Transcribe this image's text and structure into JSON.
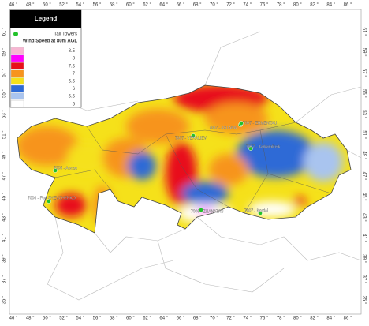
{
  "legend": {
    "title": "Legend",
    "towers_label": "Tall Towers",
    "subtitle": "Wind Speed at 80m AGL",
    "classes": [
      8.5,
      8,
      7.5,
      7,
      6.5,
      6,
      5.5,
      5
    ]
  },
  "map": {
    "lon_labels": [
      "46 °",
      "48 °",
      "50 °",
      "52 °",
      "54 °",
      "56 °",
      "58 °",
      "60 °",
      "62 °",
      "64 °",
      "66 °",
      "68 °",
      "70 °",
      "72 °",
      "74 °",
      "76 °",
      "78 °",
      "80 °",
      "82 °",
      "84 °",
      "86 °"
    ],
    "lat_labels": [
      "61 °",
      "59 °",
      "57 °",
      "55 °",
      "53 °",
      "51 °",
      "49 °",
      "47 °",
      "45 °",
      "43 °",
      "41 °",
      "39 °",
      "37 °",
      "35 °"
    ]
  },
  "towers": [
    "7007 - ASTANA",
    "7007 - ERMENTAU",
    "7007 - YERALIEV",
    "7007 - Karkaralinsk",
    "7005 - Atyrau",
    "7006 - Fort SHEVCHENKO",
    "7006 - ZHANATAS",
    "7007 - Kordai"
  ]
}
